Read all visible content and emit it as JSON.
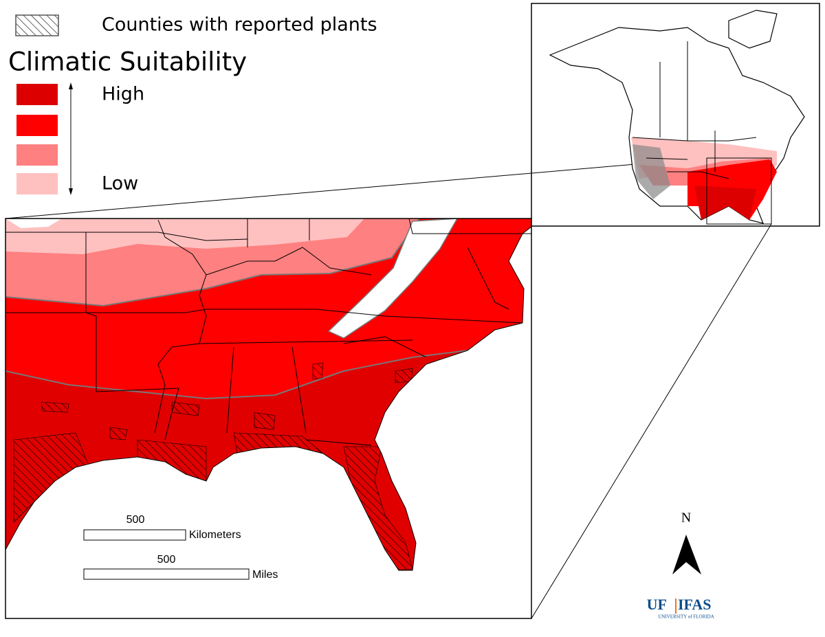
{
  "legend": {
    "hatch_label": "Counties with reported plants",
    "title": "Climatic Suitability",
    "high": "High",
    "low": "Low",
    "classes": [
      "#dd0000",
      "#ff0000",
      "#ff8080",
      "#ffc0c0"
    ]
  },
  "scale_bar": {
    "km_value": 500,
    "km_unit": "Kilometers",
    "mi_value": 500,
    "mi_unit": "Miles"
  },
  "north_arrow": "N",
  "logo": {
    "left": "UF",
    "right": "IFAS",
    "subtitle": "UNIVERSITY of FLORIDA"
  }
}
